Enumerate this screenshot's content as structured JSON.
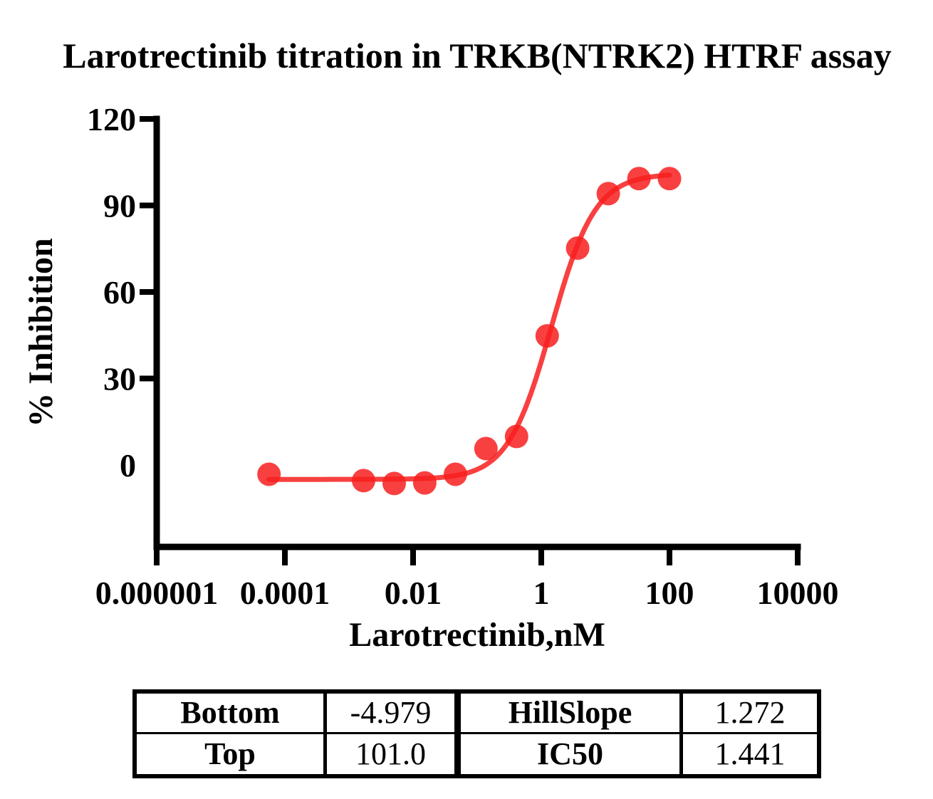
{
  "title": "Larotrectinib titration in TRKB(NTRK2) HTRF assay",
  "chart_data": {
    "type": "scatter",
    "title": "Larotrectinib titration in TRKB(NTRK2) HTRF assay",
    "xlabel": "Larotrectinib,nM",
    "ylabel": "% Inhibition",
    "x_scale": "log10",
    "xlim_log10": [
      -6,
      4
    ],
    "ylim": [
      -28,
      120
    ],
    "grid": false,
    "legend": null,
    "x_ticks": [
      {
        "value": 1e-06,
        "label": "0.000001"
      },
      {
        "value": 0.0001,
        "label": "0.0001"
      },
      {
        "value": 0.01,
        "label": "0.01"
      },
      {
        "value": 1,
        "label": "1"
      },
      {
        "value": 100,
        "label": "100"
      },
      {
        "value": 10000,
        "label": "10000"
      }
    ],
    "y_ticks": [
      {
        "value": 0,
        "label": "0",
        "mark": false
      },
      {
        "value": 30,
        "label": "30",
        "mark": true
      },
      {
        "value": 60,
        "label": "60",
        "mark": true
      },
      {
        "value": 90,
        "label": "90",
        "mark": true
      },
      {
        "value": 120,
        "label": "120",
        "mark": true
      }
    ],
    "points": [
      {
        "conc_nM": 5.65e-05,
        "inhibition": -3.2
      },
      {
        "conc_nM": 0.00169,
        "inhibition": -5.4
      },
      {
        "conc_nM": 0.00508,
        "inhibition": -6.4
      },
      {
        "conc_nM": 0.0152,
        "inhibition": -6.2
      },
      {
        "conc_nM": 0.0457,
        "inhibition": -3.2
      },
      {
        "conc_nM": 0.137,
        "inhibition": 5.7
      },
      {
        "conc_nM": 0.412,
        "inhibition": 9.9
      },
      {
        "conc_nM": 1.235,
        "inhibition": 44.8
      },
      {
        "conc_nM": 3.7,
        "inhibition": 75.2
      },
      {
        "conc_nM": 11.11,
        "inhibition": 94.1
      },
      {
        "conc_nM": 33.33,
        "inhibition": 99.3
      },
      {
        "conc_nM": 100,
        "inhibition": 99.3
      }
    ],
    "fit": {
      "model": "4-parameter logistic",
      "bottom": -4.979,
      "top": 101.0,
      "hillslope": 1.272,
      "ic50": 1.441
    },
    "curve_color": "#f81e1e",
    "marker_color": "#f81e1e"
  },
  "results_table": {
    "rows": [
      [
        "Bottom",
        "-4.979",
        "HillSlope",
        "1.272"
      ],
      [
        "Top",
        "101.0",
        "IC50",
        "1.441"
      ]
    ]
  }
}
